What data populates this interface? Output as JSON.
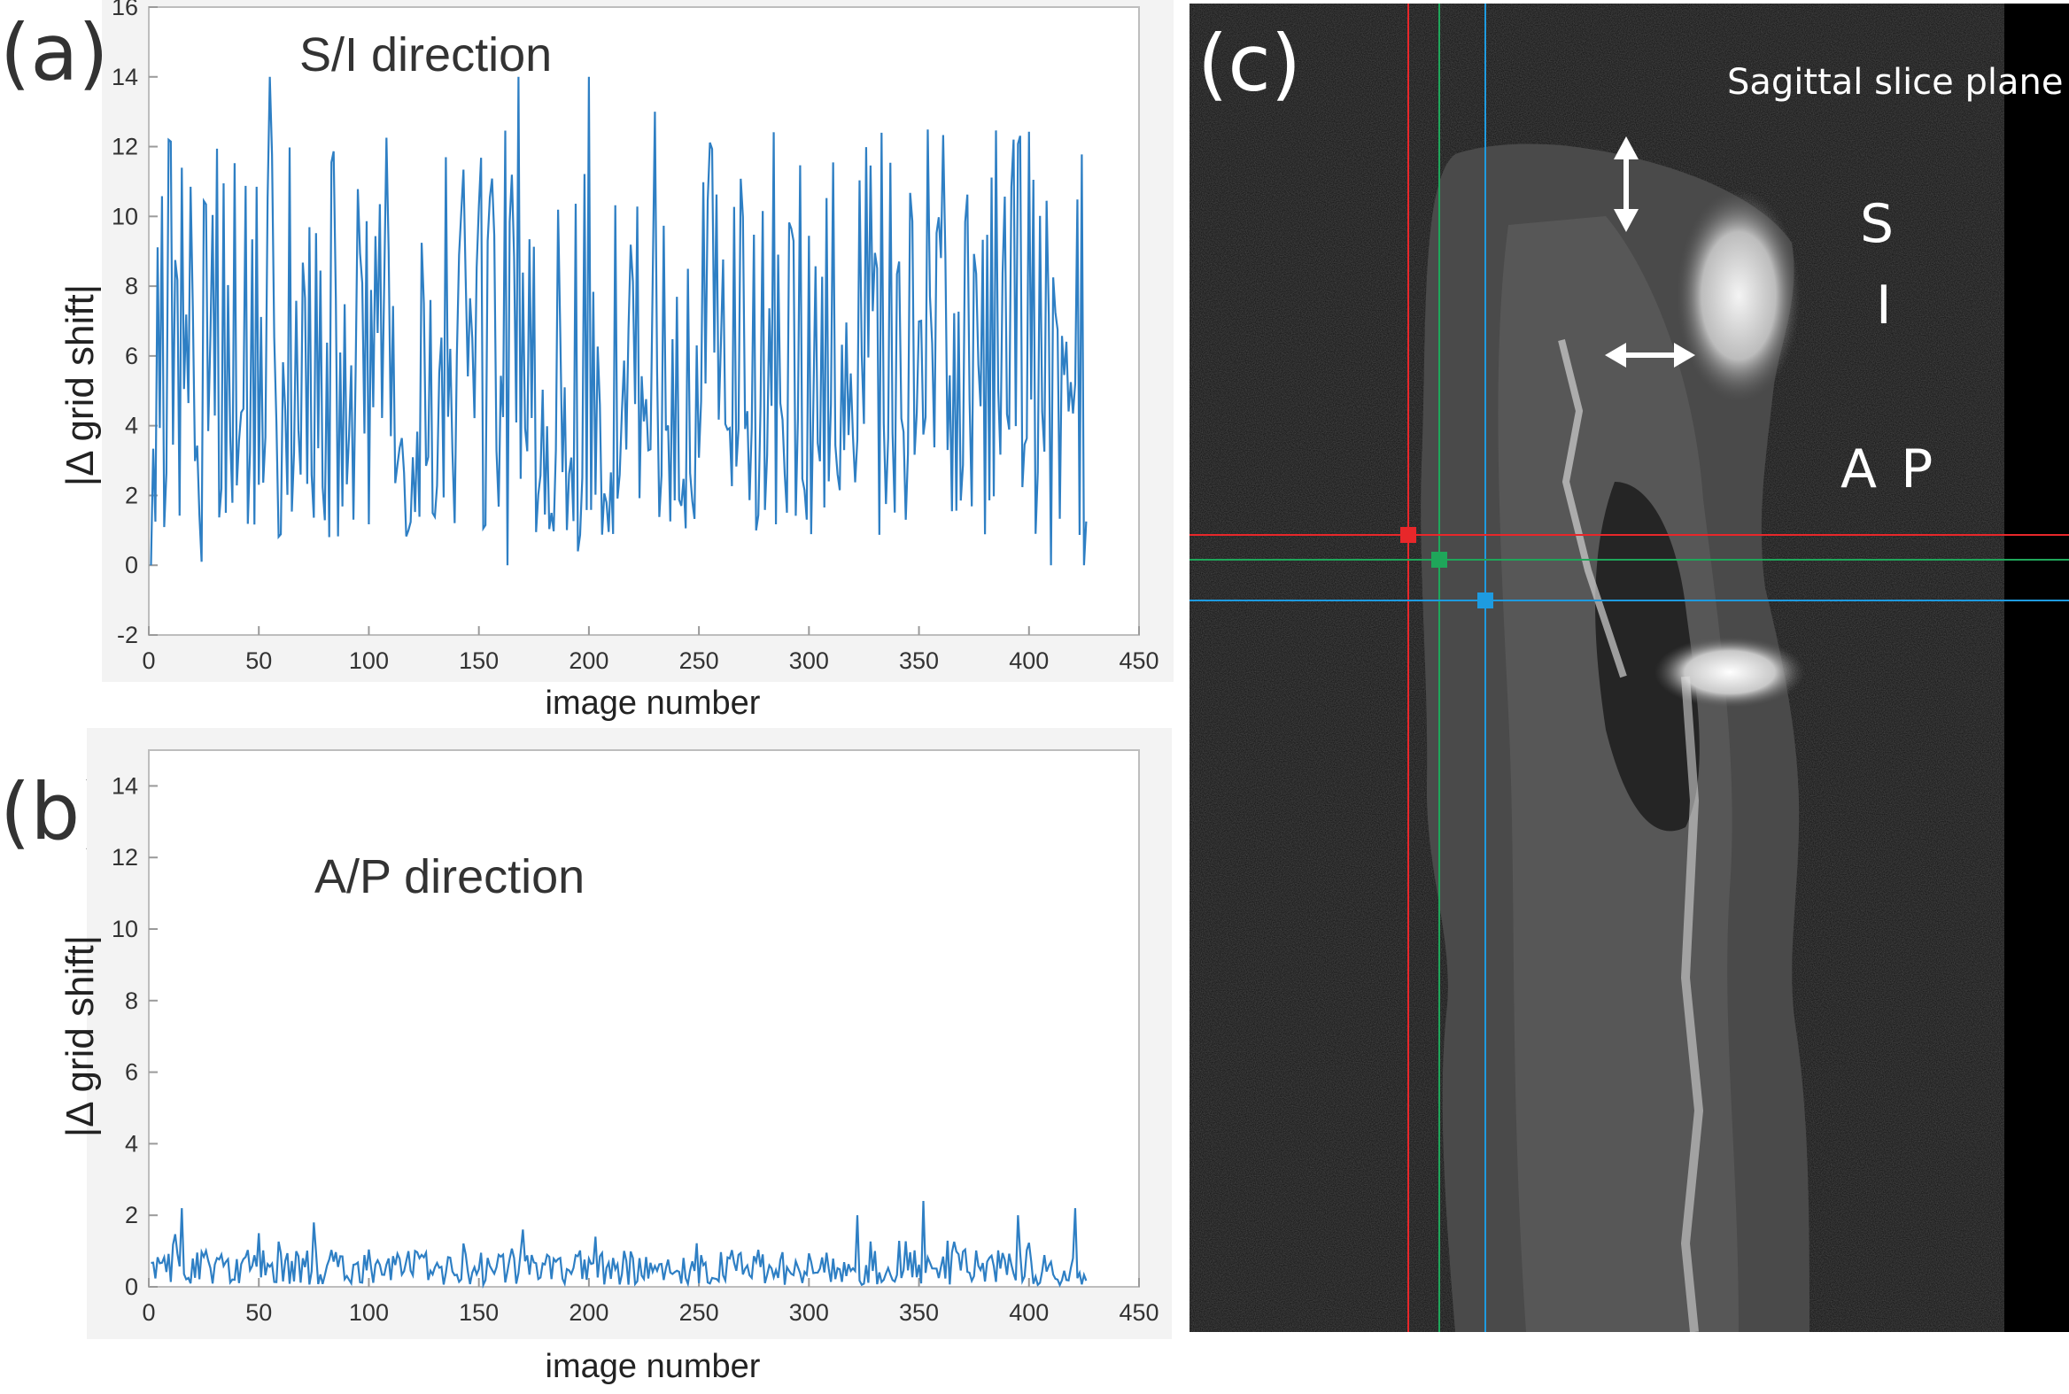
{
  "panels": {
    "a": {
      "letter": "(a)"
    },
    "b": {
      "letter": "(b)"
    },
    "c": {
      "letter": "(c)"
    }
  },
  "chart_data": [
    {
      "id": "a",
      "type": "line",
      "annotation": "S/I direction",
      "xlabel": "image number",
      "ylabel": "|Δ grid shift|",
      "xlim": [
        0,
        450
      ],
      "ylim": [
        -2,
        16
      ],
      "xticks": [
        0,
        50,
        100,
        150,
        200,
        250,
        300,
        350,
        400,
        450
      ],
      "yticks": [
        -2,
        0,
        2,
        4,
        6,
        8,
        10,
        12,
        14,
        16
      ],
      "grid": false,
      "color": "#2e7fc4",
      "n_points": 426,
      "x_range": [
        1,
        426
      ],
      "y_range_observed": [
        0,
        14
      ],
      "approx_mean": 5.5,
      "peaks": [
        [
          55,
          14
        ],
        [
          168,
          14
        ],
        [
          200,
          14
        ],
        [
          230,
          13
        ],
        [
          393,
          12.2
        ]
      ],
      "troughs": [
        [
          1,
          0
        ],
        [
          24,
          0.1
        ],
        [
          163,
          0
        ],
        [
          195,
          0.4
        ],
        [
          410,
          0
        ],
        [
          425,
          0
        ]
      ]
    },
    {
      "id": "b",
      "type": "line",
      "annotation": "A/P direction",
      "xlabel": "image number",
      "ylabel": "|Δ grid shift|",
      "xlim": [
        0,
        450
      ],
      "ylim": [
        0,
        15
      ],
      "xticks": [
        0,
        50,
        100,
        150,
        200,
        250,
        300,
        350,
        400,
        450
      ],
      "yticks": [
        0,
        2,
        4,
        6,
        8,
        10,
        12,
        14
      ],
      "grid": false,
      "color": "#2e7fc4",
      "n_points": 426,
      "x_range": [
        1,
        426
      ],
      "y_range_observed": [
        0,
        2.5
      ],
      "approx_mean": 0.6,
      "peaks": [
        [
          15,
          2.2
        ],
        [
          50,
          1.5
        ],
        [
          75,
          1.8
        ],
        [
          170,
          1.6
        ],
        [
          322,
          2.0
        ],
        [
          352,
          2.4
        ],
        [
          395,
          2.0
        ],
        [
          421,
          2.2
        ]
      ]
    }
  ],
  "mri": {
    "label": "Sagittal slice plane",
    "s_label": "S",
    "i_label": "I",
    "ap_label": "A P",
    "crosshair_colors": {
      "red": "#e8272a",
      "green": "#1fa65a",
      "blue": "#1e9be0"
    }
  }
}
